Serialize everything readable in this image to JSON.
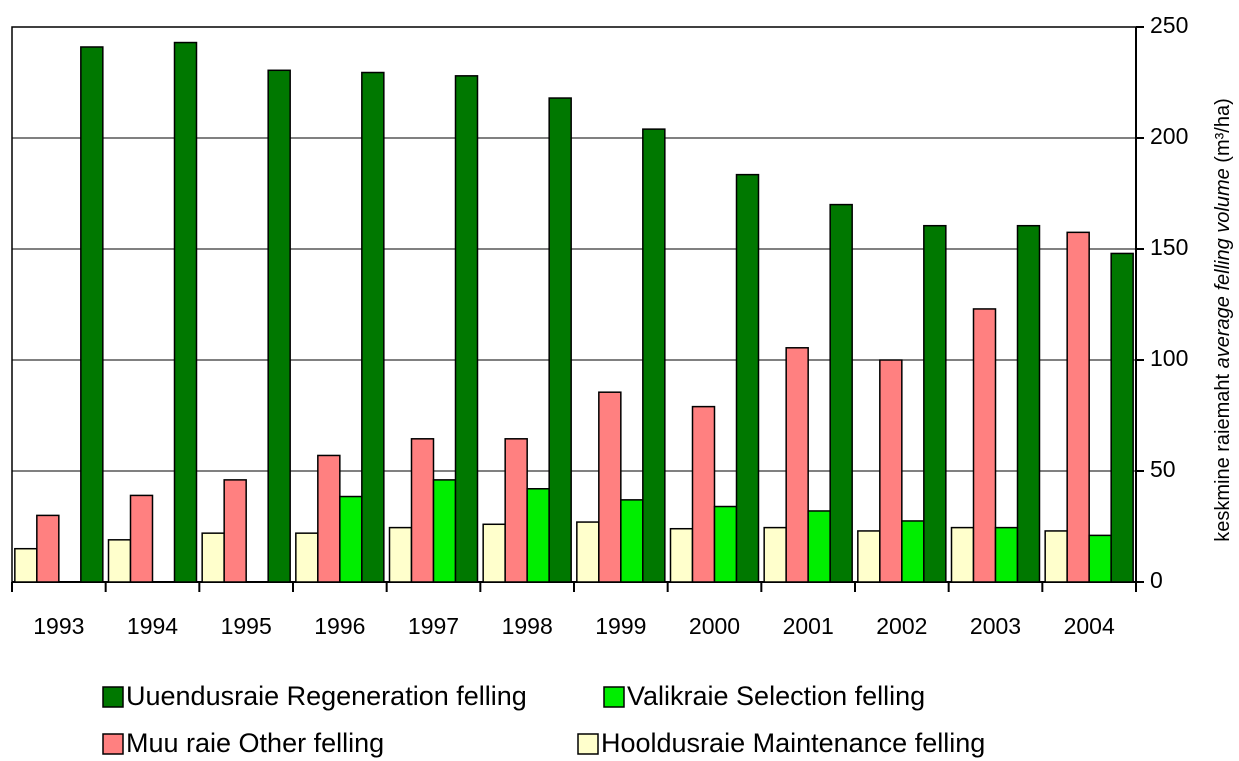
{
  "chart_data": {
    "type": "bar",
    "categories": [
      "1993",
      "1994",
      "1995",
      "1996",
      "1997",
      "1998",
      "1999",
      "2000",
      "2001",
      "2002",
      "2003",
      "2004"
    ],
    "series": [
      {
        "name": "Hooldusraie Maintenance felling",
        "color": "#ffffcc",
        "values": [
          15,
          19,
          22,
          22,
          24.5,
          26,
          27,
          24,
          24.5,
          23,
          24.5,
          23
        ]
      },
      {
        "name": "Muu raie Other felling",
        "color": "#ff8080",
        "values": [
          30,
          39,
          46,
          57,
          64.5,
          64.5,
          85.5,
          79,
          105.5,
          100,
          123,
          157.5
        ]
      },
      {
        "name": "Valikraie Selection felling",
        "color": "#00ee00",
        "values": [
          0,
          0,
          0,
          38.5,
          46,
          42,
          37,
          34,
          32,
          27.5,
          24.5,
          21
        ]
      },
      {
        "name": "Uuendusraie Regeneration felling",
        "color": "#007800",
        "values": [
          241,
          243,
          230.5,
          229.5,
          228,
          218,
          204,
          183.5,
          170,
          160.5,
          160.5,
          148
        ]
      }
    ],
    "y_label": {
      "plain": "keskmine raiemaht",
      "italic": "average felling volume",
      "unit": "(m³/ha)"
    },
    "ylim": [
      0,
      250
    ],
    "yticks": [
      0,
      50,
      100,
      150,
      200,
      250
    ],
    "grid": true
  }
}
